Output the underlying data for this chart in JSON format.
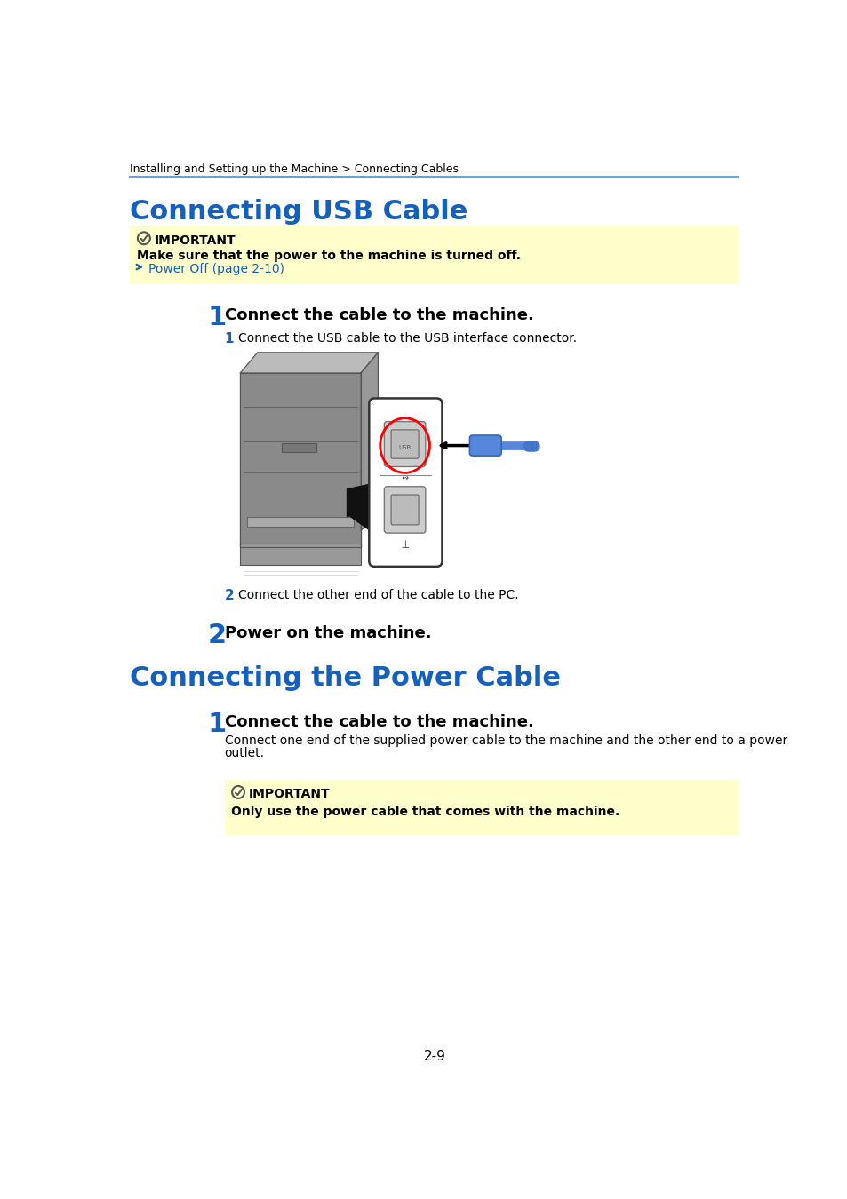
{
  "breadcrumb": "Installing and Setting up the Machine > Connecting Cables",
  "title1": "Connecting USB Cable",
  "title2": "Connecting the Power Cable",
  "important_color": "#ffffcc",
  "blue_color": "#1560bd",
  "header_line_color": "#6aa3d5",
  "important1_text1": "IMPORTANT",
  "important1_text2": "Make sure that the power to the machine is turned off.",
  "important1_link": "Power Off (page 2-10)",
  "step1_num": "1",
  "step1_title": "Connect the cable to the machine.",
  "substep1_num": "1",
  "substep1_text": "Connect the USB cable to the USB interface connector.",
  "substep2_num": "2",
  "substep2_text": "Connect the other end of the cable to the PC.",
  "step2_num": "2",
  "step2_title": "Power on the machine.",
  "step3_num": "1",
  "step3_title": "Connect the cable to the machine.",
  "step3_body1": "Connect one end of the supplied power cable to the machine and the other end to a power",
  "step3_body2": "outlet.",
  "important2_text1": "IMPORTANT",
  "important2_text2": "Only use the power cable that comes with the machine.",
  "page_num": "2-9",
  "bg_color": "#ffffff",
  "text_color": "#000000",
  "link_color": "#1560bd"
}
